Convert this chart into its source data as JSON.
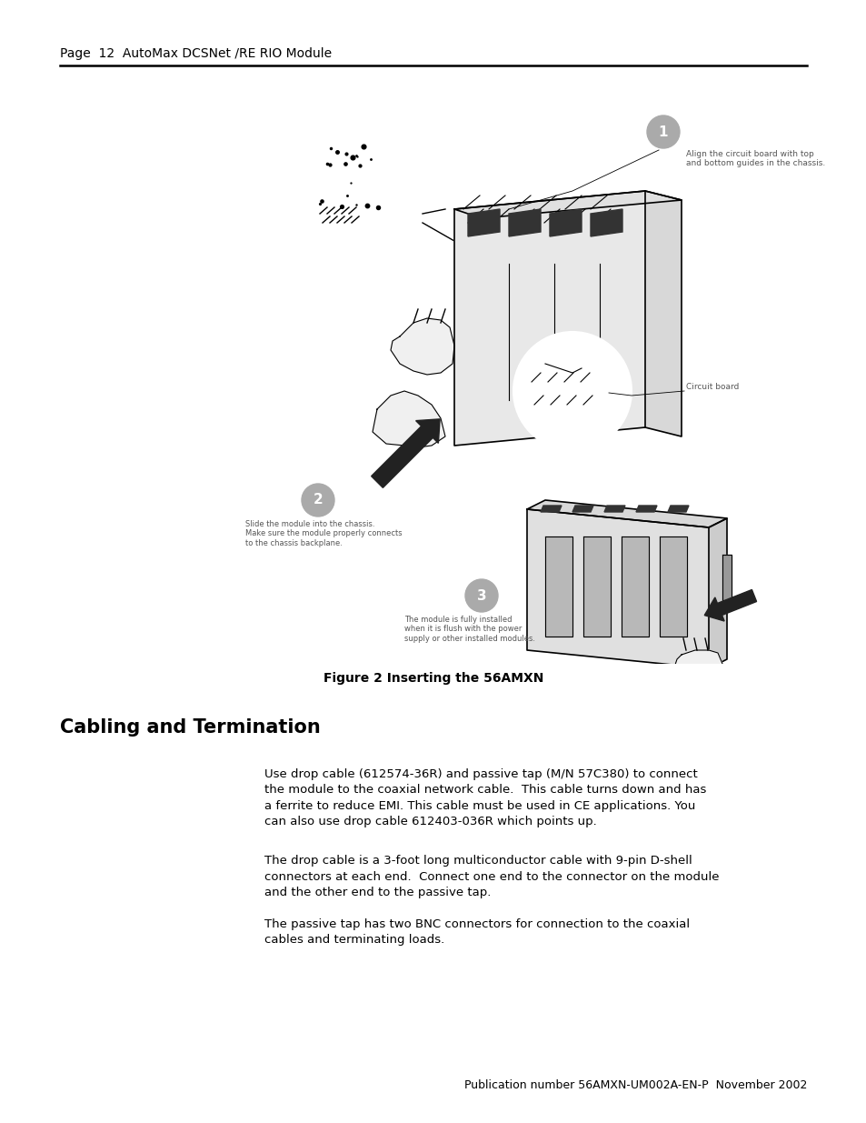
{
  "background_color": "#ffffff",
  "page_width": 9.54,
  "page_height": 12.35,
  "header_text": "Page  12  AutoMax DCSNet /RE RIO Module",
  "header_fontsize": 10,
  "figure_caption": "Figure 2 Inserting the 56AMXN",
  "figure_caption_fontsize": 10,
  "section_title": "Cabling and Termination",
  "section_title_fontsize": 15,
  "para1": "Use drop cable (612574-36R) and passive tap (M/N 57C380) to connect\nthe module to the coaxial network cable.  This cable turns down and has\na ferrite to reduce EMI. This cable must be used in CE applications. You\ncan also use drop cable 612403-036R which points up.",
  "para2": "The drop cable is a 3-foot long multiconductor cable with 9-pin D-shell\nconnectors at each end.  Connect one end to the connector on the module\nand the other end to the passive tap.",
  "para3": "The passive tap has two BNC connectors for connection to the coaxial\ncables and terminating loads.",
  "body_fontsize": 9.5,
  "footer_text": "Publication number 56AMXN-UM002A-EN-P  November 2002",
  "footer_fontsize": 9,
  "ann1_text": "Align the circuit board with top\nand bottom guides in the chassis.",
  "ann2_text": "Slide the module into the chassis.\nMake sure the module properly connects\nto the chassis backplane.",
  "ann3_text": "The module is fully installed\nwhen it is flush with the power\nsupply or other installed modules.",
  "circuit_board_text": "Circuit board",
  "step_circle_color": "#aaaaaa",
  "step_text_color": "#ffffff",
  "ann_text_color": "#555555",
  "line_color": "#000000"
}
